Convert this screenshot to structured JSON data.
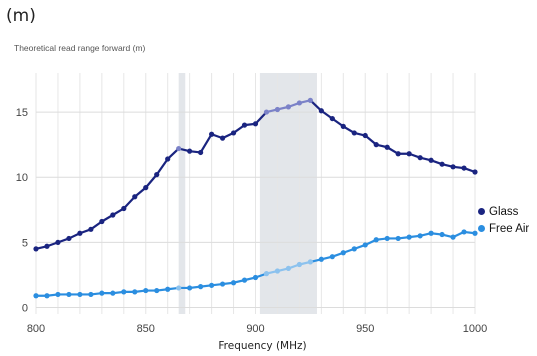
{
  "header": {
    "unit": "(m)"
  },
  "chart_data": {
    "type": "line",
    "title": "Theoretical read range forward (m)",
    "xlabel": "Frequency (MHz)",
    "ylabel": "",
    "xlim": [
      800,
      1000
    ],
    "ylim": [
      -0.5,
      18
    ],
    "xticks": [
      800,
      850,
      900,
      950,
      1000
    ],
    "yticks": [
      0,
      5,
      10,
      15
    ],
    "grid": true,
    "legend_position": "right",
    "shaded_bands": [
      {
        "x0": 865,
        "x1": 868
      },
      {
        "x0": 902,
        "x1": 928
      }
    ],
    "x": [
      800,
      805,
      810,
      815,
      820,
      825,
      830,
      835,
      840,
      845,
      850,
      855,
      860,
      865,
      870,
      875,
      880,
      885,
      890,
      895,
      900,
      905,
      910,
      915,
      920,
      925,
      930,
      935,
      940,
      945,
      950,
      955,
      960,
      965,
      970,
      975,
      980,
      985,
      990,
      995,
      1000
    ],
    "series": [
      {
        "name": "Glass",
        "color": "#1a2480",
        "highlight_color": "#7b82c8",
        "values": [
          4.5,
          4.7,
          5.0,
          5.3,
          5.7,
          6.0,
          6.6,
          7.1,
          7.6,
          8.5,
          9.2,
          10.2,
          11.4,
          12.2,
          12.0,
          11.9,
          13.3,
          13.0,
          13.4,
          14.0,
          14.1,
          15.0,
          15.2,
          15.4,
          15.7,
          15.9,
          15.1,
          14.5,
          13.9,
          13.4,
          13.2,
          12.5,
          12.3,
          11.8,
          11.8,
          11.5,
          11.3,
          11.0,
          10.8,
          10.7,
          10.4
        ]
      },
      {
        "name": "Free Air",
        "color": "#2b8ee0",
        "highlight_color": "#8cc2ee",
        "values": [
          0.9,
          0.9,
          1.0,
          1.0,
          1.0,
          1.0,
          1.1,
          1.1,
          1.2,
          1.2,
          1.3,
          1.3,
          1.4,
          1.5,
          1.5,
          1.6,
          1.7,
          1.8,
          1.9,
          2.1,
          2.3,
          2.6,
          2.8,
          3.0,
          3.3,
          3.5,
          3.7,
          3.9,
          4.2,
          4.5,
          4.8,
          5.2,
          5.3,
          5.3,
          5.4,
          5.5,
          5.7,
          5.6,
          5.4,
          5.8,
          5.7
        ]
      }
    ]
  }
}
